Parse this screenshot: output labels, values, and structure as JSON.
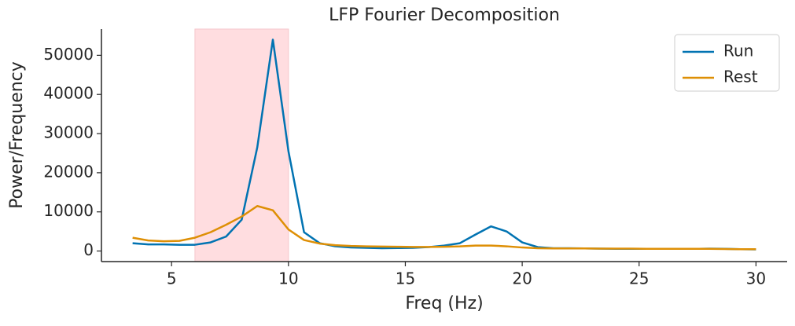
{
  "chart_data": {
    "type": "line",
    "title": "LFP Fourier Decomposition",
    "x_label": "Freq (Hz)",
    "y_label": "Power/Frequency",
    "x": [
      3.333,
      4,
      4.667,
      5.333,
      6,
      6.667,
      7.333,
      8,
      8.667,
      9.333,
      10,
      10.667,
      11.333,
      12,
      12.667,
      13.333,
      14,
      14.667,
      15.333,
      16,
      16.667,
      17.333,
      18,
      18.667,
      19.333,
      20,
      20.667,
      21.333,
      22,
      22.667,
      23.333,
      24,
      24.667,
      25.333,
      26,
      26.667,
      27.333,
      28,
      28.667,
      29.333,
      30
    ],
    "series": [
      {
        "name": "Run",
        "color": "#0173b2",
        "values": [
          2000,
          1700,
          1700,
          1600,
          1600,
          2200,
          3700,
          8000,
          26500,
          54000,
          25500,
          4800,
          2000,
          1200,
          900,
          800,
          700,
          750,
          800,
          1000,
          1400,
          2000,
          4200,
          6300,
          5000,
          2200,
          1000,
          700,
          700,
          650,
          600,
          550,
          550,
          550,
          550,
          550,
          550,
          600,
          550,
          450,
          400
        ]
      },
      {
        "name": "Rest",
        "color": "#de8f05",
        "values": [
          3400,
          2700,
          2500,
          2600,
          3400,
          4800,
          6700,
          8800,
          11500,
          10400,
          5500,
          2800,
          1900,
          1500,
          1300,
          1200,
          1150,
          1100,
          1050,
          1050,
          1100,
          1200,
          1400,
          1400,
          1200,
          900,
          700,
          650,
          650,
          650,
          600,
          600,
          600,
          550,
          550,
          550,
          550,
          550,
          500,
          450,
          450
        ]
      }
    ],
    "shaded_range": {
      "x": [
        6,
        10
      ],
      "color": "#ffdde0"
    },
    "xlim": [
      2,
      31.333
    ],
    "ylim": [
      -2700,
      56700
    ],
    "xticks": [
      5,
      10,
      15,
      20,
      25,
      30
    ],
    "yticks": [
      0,
      10000,
      20000,
      30000,
      40000,
      50000
    ],
    "legend": "upper right",
    "grid": false
  }
}
